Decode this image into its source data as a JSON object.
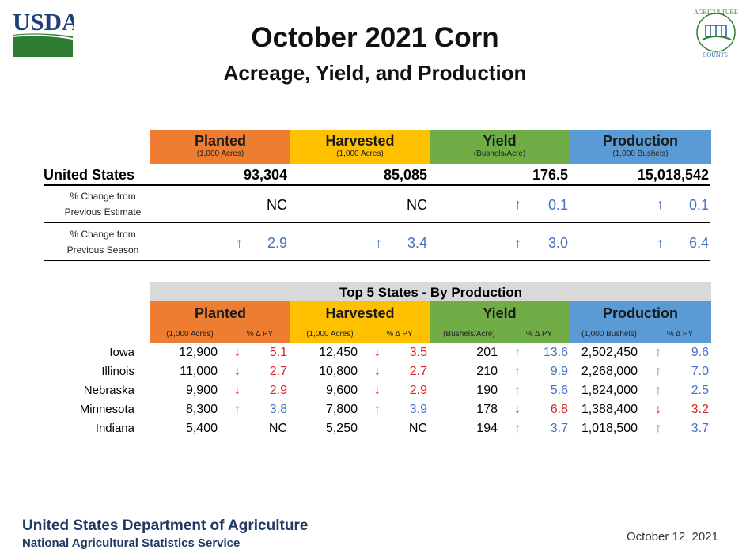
{
  "header": {
    "usda_logo_text": "USDA",
    "title": "October 2021 Corn",
    "subtitle": "Acreage, Yield, and Production"
  },
  "summary": {
    "columns": [
      {
        "label": "Planted",
        "unit": "(1,000 Acres)",
        "color": "#ed7d31"
      },
      {
        "label": "Harvested",
        "unit": "(1,000 Acres)",
        "color": "#ffc000"
      },
      {
        "label": "Yield",
        "unit": "(Bushels/Acre)",
        "color": "#70ad47"
      },
      {
        "label": "Production",
        "unit": "(1,000 Bushels)",
        "color": "#5b9bd5"
      }
    ],
    "us_label": "United States",
    "us_values": [
      "93,304",
      "85,085",
      "176.5",
      "15,018,542"
    ],
    "prev_estimate_label_1": "% Change from",
    "prev_estimate_label_2": "Previous Estimate",
    "prev_estimate": [
      {
        "arrow": "",
        "value": "NC"
      },
      {
        "arrow": "",
        "value": "NC"
      },
      {
        "arrow": "up",
        "value": "0.1"
      },
      {
        "arrow": "up",
        "value": "0.1"
      }
    ],
    "prev_season_label_1": "% Change from",
    "prev_season_label_2": "Previous Season",
    "prev_season": [
      {
        "arrow": "up",
        "value": "2.9"
      },
      {
        "arrow": "up",
        "value": "3.4"
      },
      {
        "arrow": "up",
        "value": "3.0"
      },
      {
        "arrow": "up",
        "value": "6.4"
      }
    ]
  },
  "top5": {
    "title": "Top 5 States - By Production",
    "columns": [
      "Planted",
      "Harvested",
      "Yield",
      "Production"
    ],
    "subheaders": [
      "(1,000 Acres)",
      "% Δ PY",
      "(1,000 Acres)",
      "% Δ PY",
      "(Bushels/Acre)",
      "% Δ PY",
      "(1,000 Bushels)",
      "% Δ PY"
    ],
    "rows": [
      {
        "state": "Iowa",
        "planted": "12,900",
        "p_arrow": "down",
        "p_pct": "5.1",
        "harvested": "12,450",
        "h_arrow": "down",
        "h_pct": "3.5",
        "yield": "201",
        "y_arrow": "up",
        "y_pct": "13.6",
        "production": "2,502,450",
        "pr_arrow": "up",
        "pr_pct": "9.6"
      },
      {
        "state": "Illinois",
        "planted": "11,000",
        "p_arrow": "down",
        "p_pct": "2.7",
        "harvested": "10,800",
        "h_arrow": "down",
        "h_pct": "2.7",
        "yield": "210",
        "y_arrow": "up",
        "y_pct": "9.9",
        "production": "2,268,000",
        "pr_arrow": "up",
        "pr_pct": "7.0"
      },
      {
        "state": "Nebraska",
        "planted": "9,900",
        "p_arrow": "down",
        "p_pct": "2.9",
        "harvested": "9,600",
        "h_arrow": "down",
        "h_pct": "2.9",
        "yield": "190",
        "y_arrow": "up",
        "y_pct": "5.6",
        "production": "1,824,000",
        "pr_arrow": "up",
        "pr_pct": "2.5"
      },
      {
        "state": "Minnesota",
        "planted": "8,300",
        "p_arrow": "up",
        "p_pct": "3.8",
        "harvested": "7,800",
        "h_arrow": "up",
        "h_pct": "3.9",
        "yield": "178",
        "y_arrow": "down",
        "y_pct": "6.8",
        "production": "1,388,400",
        "pr_arrow": "down",
        "pr_pct": "3.2"
      },
      {
        "state": "Indiana",
        "planted": "5,400",
        "p_arrow": "",
        "p_pct": "NC",
        "harvested": "5,250",
        "h_arrow": "",
        "h_pct": "NC",
        "yield": "194",
        "y_arrow": "up",
        "y_pct": "3.7",
        "production": "1,018,500",
        "pr_arrow": "up",
        "pr_pct": "3.7"
      }
    ]
  },
  "footer": {
    "line1": "United States Department of Agriculture",
    "line2": "National Agricultural Statistics Service",
    "date": "October 12, 2021"
  }
}
